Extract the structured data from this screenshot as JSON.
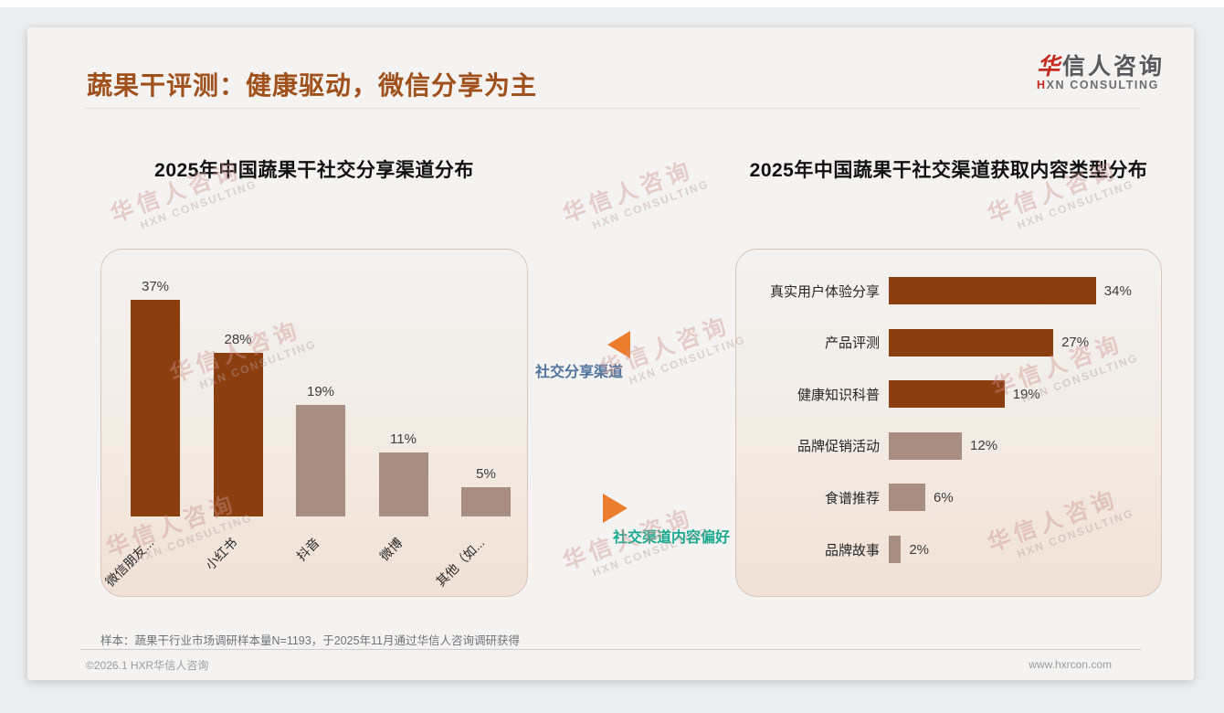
{
  "page": {
    "title": "蔬果干评测：健康驱动，微信分享为主",
    "footnote": "样本：蔬果干行业市场调研样本量N=1193，于2025年11月通过华信人咨询调研获得",
    "copyright": "©2026.1 HXR华信人咨询",
    "website": "www.hxrcon.com"
  },
  "logo": {
    "zh_first": "华",
    "zh_rest": "信人咨询",
    "en_first": "H",
    "en_rest": "XN CONSULTING"
  },
  "watermark": {
    "line1": "华信人咨询",
    "line2": "HXN CONSULTING"
  },
  "annotations": {
    "share_channel_label": "社交分享渠道",
    "content_preference_label": "社交渠道内容偏好"
  },
  "colors": {
    "title_brown": "#a0511b",
    "bar_dark_brown": "#8b3e10",
    "bar_taupe": "#a88d83",
    "triangle_orange": "#ec7d2f",
    "label_blue": "#50749e",
    "label_teal": "#18a98f",
    "logo_red": "#c62a21"
  },
  "chart_data": [
    {
      "type": "bar",
      "orientation": "vertical",
      "title": "2025年中国蔬果干社交分享渠道分布",
      "categories": [
        "微信朋友...",
        "小红书",
        "抖音",
        "微博",
        "其他（如..."
      ],
      "values": [
        37,
        28,
        19,
        11,
        5
      ],
      "unit": "%",
      "bar_colors": [
        "#8b3e10",
        "#8b3e10",
        "#a88d83",
        "#a88d83",
        "#a88d83"
      ],
      "ylim": [
        0,
        40
      ],
      "grid": false,
      "data_labels": true
    },
    {
      "type": "bar",
      "orientation": "horizontal",
      "title": "2025年中国蔬果干社交渠道获取内容类型分布",
      "categories": [
        "真实用户体验分享",
        "产品评测",
        "健康知识科普",
        "品牌促销活动",
        "食谱推荐",
        "品牌故事"
      ],
      "values": [
        34,
        27,
        19,
        12,
        6,
        2
      ],
      "unit": "%",
      "bar_colors": [
        "#8b3e10",
        "#8b3e10",
        "#8b3e10",
        "#a88d83",
        "#a88d83",
        "#a88d83"
      ],
      "xlim": [
        0,
        40
      ],
      "grid": false,
      "data_labels": true
    }
  ]
}
